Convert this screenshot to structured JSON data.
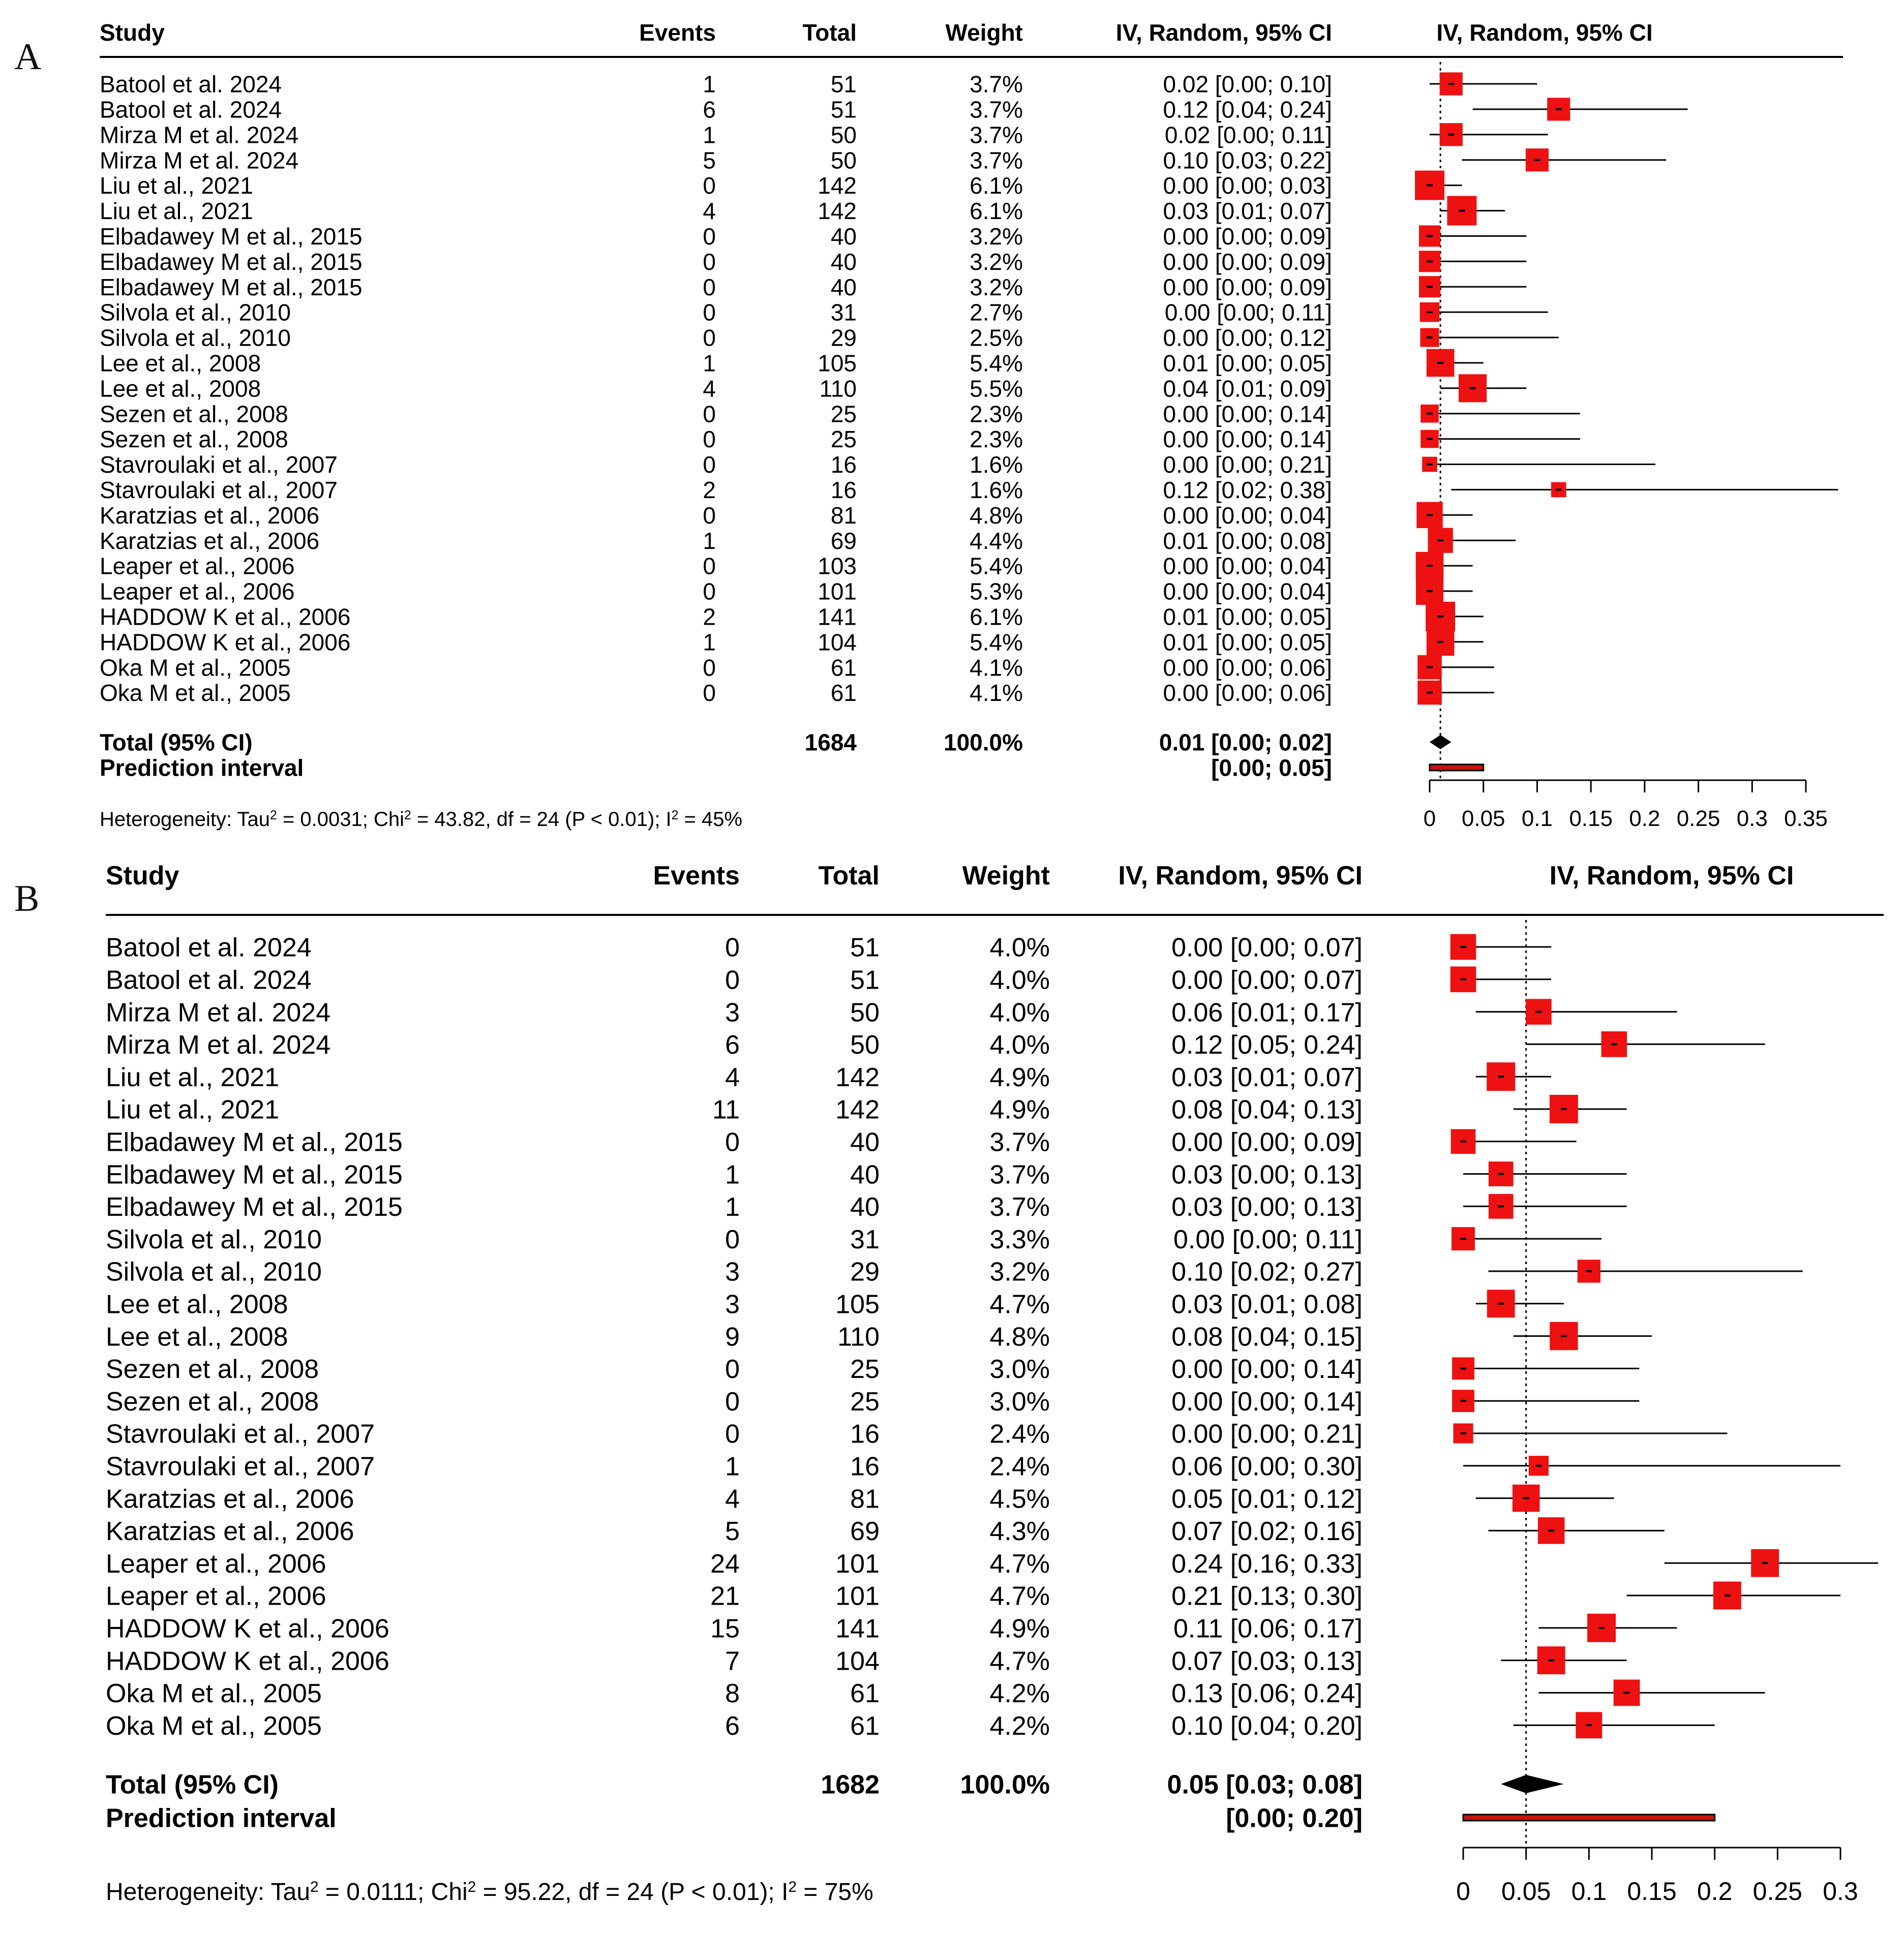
{
  "chart_data": [
    {
      "type": "forest",
      "panel_label": "A",
      "headers": {
        "study": "Study",
        "events": "Events",
        "total": "Total",
        "weight": "Weight",
        "ci": "IV, Random, 95% CI",
        "plot": "IV, Random, 95% CI"
      },
      "rows": [
        {
          "study": "Batool et al.  2024",
          "events": "1",
          "total": "51",
          "weight": "3.7%",
          "ci_text": "0.02 [0.00; 0.10]",
          "est": 0.02,
          "lo": 0.0,
          "hi": 0.1,
          "w": 3.7
        },
        {
          "study": "Batool et al.  2024",
          "events": "6",
          "total": "51",
          "weight": "3.7%",
          "ci_text": "0.12 [0.04; 0.24]",
          "est": 0.12,
          "lo": 0.04,
          "hi": 0.24,
          "w": 3.7
        },
        {
          "study": "Mirza M et al. 2024",
          "events": "1",
          "total": "50",
          "weight": "3.7%",
          "ci_text": "0.02 [0.00; 0.11]",
          "est": 0.02,
          "lo": 0.0,
          "hi": 0.11,
          "w": 3.7
        },
        {
          "study": "Mirza M et al. 2024",
          "events": "5",
          "total": "50",
          "weight": "3.7%",
          "ci_text": "0.10 [0.03; 0.22]",
          "est": 0.1,
          "lo": 0.03,
          "hi": 0.22,
          "w": 3.7
        },
        {
          "study": "Liu et al., 2021",
          "events": "0",
          "total": "142",
          "weight": "6.1%",
          "ci_text": "0.00 [0.00; 0.03]",
          "est": 0.0,
          "lo": 0.0,
          "hi": 0.03,
          "w": 6.1
        },
        {
          "study": "Liu et al., 2021",
          "events": "4",
          "total": "142",
          "weight": "6.1%",
          "ci_text": "0.03 [0.01; 0.07]",
          "est": 0.03,
          "lo": 0.01,
          "hi": 0.07,
          "w": 6.1
        },
        {
          "study": "Elbadawey M et al., 2015",
          "events": "0",
          "total": "40",
          "weight": "3.2%",
          "ci_text": "0.00 [0.00; 0.09]",
          "est": 0.0,
          "lo": 0.0,
          "hi": 0.09,
          "w": 3.2
        },
        {
          "study": "Elbadawey M et al., 2015",
          "events": "0",
          "total": "40",
          "weight": "3.2%",
          "ci_text": "0.00 [0.00; 0.09]",
          "est": 0.0,
          "lo": 0.0,
          "hi": 0.09,
          "w": 3.2
        },
        {
          "study": "Elbadawey M et al., 2015",
          "events": "0",
          "total": "40",
          "weight": "3.2%",
          "ci_text": "0.00 [0.00; 0.09]",
          "est": 0.0,
          "lo": 0.0,
          "hi": 0.09,
          "w": 3.2
        },
        {
          "study": "Silvola et al.,  2010",
          "events": "0",
          "total": "31",
          "weight": "2.7%",
          "ci_text": "0.00 [0.00; 0.11]",
          "est": 0.0,
          "lo": 0.0,
          "hi": 0.11,
          "w": 2.7
        },
        {
          "study": "Silvola et al., 2010",
          "events": "0",
          "total": "29",
          "weight": "2.5%",
          "ci_text": "0.00 [0.00; 0.12]",
          "est": 0.0,
          "lo": 0.0,
          "hi": 0.12,
          "w": 2.5
        },
        {
          "study": "Lee et al., 2008",
          "events": "1",
          "total": "105",
          "weight": "5.4%",
          "ci_text": "0.01 [0.00; 0.05]",
          "est": 0.01,
          "lo": 0.0,
          "hi": 0.05,
          "w": 5.4
        },
        {
          "study": "Lee et al., 2008",
          "events": "4",
          "total": "110",
          "weight": "5.5%",
          "ci_text": "0.04 [0.01; 0.09]",
          "est": 0.04,
          "lo": 0.01,
          "hi": 0.09,
          "w": 5.5
        },
        {
          "study": "Sezen et al.,  2008",
          "events": "0",
          "total": "25",
          "weight": "2.3%",
          "ci_text": "0.00 [0.00; 0.14]",
          "est": 0.0,
          "lo": 0.0,
          "hi": 0.14,
          "w": 2.3
        },
        {
          "study": "Sezen et al., 2008",
          "events": "0",
          "total": "25",
          "weight": "2.3%",
          "ci_text": "0.00 [0.00; 0.14]",
          "est": 0.0,
          "lo": 0.0,
          "hi": 0.14,
          "w": 2.3
        },
        {
          "study": "Stavroulaki et al., 2007",
          "events": "0",
          "total": "16",
          "weight": "1.6%",
          "ci_text": "0.00 [0.00; 0.21]",
          "est": 0.0,
          "lo": 0.0,
          "hi": 0.21,
          "w": 1.6
        },
        {
          "study": "Stavroulaki et al.,  2007",
          "events": "2",
          "total": "16",
          "weight": "1.6%",
          "ci_text": "0.12 [0.02; 0.38]",
          "est": 0.12,
          "lo": 0.02,
          "hi": 0.38,
          "w": 1.6
        },
        {
          "study": "Karatzias et al.,  2006",
          "events": "0",
          "total": "81",
          "weight": "4.8%",
          "ci_text": "0.00 [0.00; 0.04]",
          "est": 0.0,
          "lo": 0.0,
          "hi": 0.04,
          "w": 4.8
        },
        {
          "study": "Karatzias et al., 2006",
          "events": "1",
          "total": "69",
          "weight": "4.4%",
          "ci_text": "0.01 [0.00; 0.08]",
          "est": 0.01,
          "lo": 0.0,
          "hi": 0.08,
          "w": 4.4
        },
        {
          "study": "Leaper et al., 2006",
          "events": "0",
          "total": "103",
          "weight": "5.4%",
          "ci_text": "0.00 [0.00; 0.04]",
          "est": 0.0,
          "lo": 0.0,
          "hi": 0.04,
          "w": 5.4
        },
        {
          "study": "Leaper et al., 2006",
          "events": "0",
          "total": "101",
          "weight": "5.3%",
          "ci_text": "0.00 [0.00; 0.04]",
          "est": 0.0,
          "lo": 0.0,
          "hi": 0.04,
          "w": 5.3
        },
        {
          "study": "HADDOW K et al., 2006",
          "events": "2",
          "total": "141",
          "weight": "6.1%",
          "ci_text": "0.01 [0.00; 0.05]",
          "est": 0.01,
          "lo": 0.0,
          "hi": 0.05,
          "w": 6.1
        },
        {
          "study": "HADDOW K et al.,  2006",
          "events": "1",
          "total": "104",
          "weight": "5.4%",
          "ci_text": "0.01 [0.00; 0.05]",
          "est": 0.01,
          "lo": 0.0,
          "hi": 0.05,
          "w": 5.4
        },
        {
          "study": "Oka M et al.,  2005",
          "events": "0",
          "total": "61",
          "weight": "4.1%",
          "ci_text": "0.00 [0.00; 0.06]",
          "est": 0.0,
          "lo": 0.0,
          "hi": 0.06,
          "w": 4.1
        },
        {
          "study": "Oka M et al., 2005",
          "events": "0",
          "total": "61",
          "weight": "4.1%",
          "ci_text": "0.00 [0.00; 0.06]",
          "est": 0.0,
          "lo": 0.0,
          "hi": 0.06,
          "w": 4.1
        }
      ],
      "total": {
        "label": "Total (95% CI)",
        "total": "1684",
        "weight": "100.0%",
        "ci_text": "0.01 [0.00; 0.02]",
        "est": 0.01,
        "lo": 0.0,
        "hi": 0.02
      },
      "prediction": {
        "label": "Prediction interval",
        "ci_text": "[0.00; 0.05]",
        "lo": 0.0,
        "hi": 0.05
      },
      "heterogeneity": {
        "a": "Heterogeneity: Tau",
        "b": " = 0.0031; Chi",
        "c": " = 43.82, df = 24 (P < 0.01); I",
        "d": " = 45%",
        "sup": "2"
      },
      "xlim": [
        0,
        0.35
      ],
      "ref_line": 0.01,
      "ticks": [
        0,
        0.05,
        0.1,
        0.15,
        0.2,
        0.25,
        0.3,
        0.35
      ],
      "tick_labels": [
        "0",
        "0.05",
        "0.1",
        "0.15",
        "0.2",
        "0.25",
        "0.3",
        "0.35"
      ]
    },
    {
      "type": "forest",
      "panel_label": "B",
      "headers": {
        "study": "Study",
        "events": "Events",
        "total": "Total",
        "weight": "Weight",
        "ci": "IV, Random, 95% CI",
        "plot": "IV, Random, 95% CI"
      },
      "rows": [
        {
          "study": "Batool et al.  2024",
          "events": "0",
          "total": "51",
          "weight": "4.0%",
          "ci_text": "0.00 [0.00; 0.07]",
          "est": 0.0,
          "lo": 0.0,
          "hi": 0.07,
          "w": 4.0
        },
        {
          "study": "Batool et al.  2024",
          "events": "0",
          "total": "51",
          "weight": "4.0%",
          "ci_text": "0.00 [0.00; 0.07]",
          "est": 0.0,
          "lo": 0.0,
          "hi": 0.07,
          "w": 4.0
        },
        {
          "study": "Mirza M et al. 2024",
          "events": "3",
          "total": "50",
          "weight": "4.0%",
          "ci_text": "0.06 [0.01; 0.17]",
          "est": 0.06,
          "lo": 0.01,
          "hi": 0.17,
          "w": 4.0
        },
        {
          "study": "Mirza M et al. 2024",
          "events": "6",
          "total": "50",
          "weight": "4.0%",
          "ci_text": "0.12 [0.05; 0.24]",
          "est": 0.12,
          "lo": 0.05,
          "hi": 0.24,
          "w": 4.0
        },
        {
          "study": "Liu et al., 2021",
          "events": "4",
          "total": "142",
          "weight": "4.9%",
          "ci_text": "0.03 [0.01; 0.07]",
          "est": 0.03,
          "lo": 0.01,
          "hi": 0.07,
          "w": 4.9
        },
        {
          "study": "Liu et al., 2021",
          "events": "11",
          "total": "142",
          "weight": "4.9%",
          "ci_text": "0.08 [0.04; 0.13]",
          "est": 0.08,
          "lo": 0.04,
          "hi": 0.13,
          "w": 4.9
        },
        {
          "study": "Elbadawey M et al., 2015",
          "events": "0",
          "total": "40",
          "weight": "3.7%",
          "ci_text": "0.00 [0.00; 0.09]",
          "est": 0.0,
          "lo": 0.0,
          "hi": 0.09,
          "w": 3.7
        },
        {
          "study": "Elbadawey M et al., 2015",
          "events": "1",
          "total": "40",
          "weight": "3.7%",
          "ci_text": "0.03 [0.00; 0.13]",
          "est": 0.03,
          "lo": 0.0,
          "hi": 0.13,
          "w": 3.7
        },
        {
          "study": "Elbadawey M et al., 2015",
          "events": "1",
          "total": "40",
          "weight": "3.7%",
          "ci_text": "0.03 [0.00; 0.13]",
          "est": 0.03,
          "lo": 0.0,
          "hi": 0.13,
          "w": 3.7
        },
        {
          "study": "Silvola et al.,  2010",
          "events": "0",
          "total": "31",
          "weight": "3.3%",
          "ci_text": "0.00 [0.00; 0.11]",
          "est": 0.0,
          "lo": 0.0,
          "hi": 0.11,
          "w": 3.3
        },
        {
          "study": "Silvola et al., 2010",
          "events": "3",
          "total": "29",
          "weight": "3.2%",
          "ci_text": "0.10 [0.02; 0.27]",
          "est": 0.1,
          "lo": 0.02,
          "hi": 0.27,
          "w": 3.2
        },
        {
          "study": "Lee et al., 2008",
          "events": "3",
          "total": "105",
          "weight": "4.7%",
          "ci_text": "0.03 [0.01; 0.08]",
          "est": 0.03,
          "lo": 0.01,
          "hi": 0.08,
          "w": 4.7
        },
        {
          "study": "Lee et al., 2008",
          "events": "9",
          "total": "110",
          "weight": "4.8%",
          "ci_text": "0.08 [0.04; 0.15]",
          "est": 0.08,
          "lo": 0.04,
          "hi": 0.15,
          "w": 4.8
        },
        {
          "study": "Sezen et al.,  2008",
          "events": "0",
          "total": "25",
          "weight": "3.0%",
          "ci_text": "0.00 [0.00; 0.14]",
          "est": 0.0,
          "lo": 0.0,
          "hi": 0.14,
          "w": 3.0
        },
        {
          "study": "Sezen et al., 2008",
          "events": "0",
          "total": "25",
          "weight": "3.0%",
          "ci_text": "0.00 [0.00; 0.14]",
          "est": 0.0,
          "lo": 0.0,
          "hi": 0.14,
          "w": 3.0
        },
        {
          "study": "Stavroulaki et al., 2007",
          "events": "0",
          "total": "16",
          "weight": "2.4%",
          "ci_text": "0.00 [0.00; 0.21]",
          "est": 0.0,
          "lo": 0.0,
          "hi": 0.21,
          "w": 2.4
        },
        {
          "study": "Stavroulaki et al.,  2007",
          "events": "1",
          "total": "16",
          "weight": "2.4%",
          "ci_text": "0.06 [0.00; 0.30]",
          "est": 0.06,
          "lo": 0.0,
          "hi": 0.3,
          "w": 2.4
        },
        {
          "study": "Karatzias et al.,  2006",
          "events": "4",
          "total": "81",
          "weight": "4.5%",
          "ci_text": "0.05 [0.01; 0.12]",
          "est": 0.05,
          "lo": 0.01,
          "hi": 0.12,
          "w": 4.5
        },
        {
          "study": "Karatzias et al., 2006",
          "events": "5",
          "total": "69",
          "weight": "4.3%",
          "ci_text": "0.07 [0.02; 0.16]",
          "est": 0.07,
          "lo": 0.02,
          "hi": 0.16,
          "w": 4.3
        },
        {
          "study": "Leaper et al., 2006",
          "events": "24",
          "total": "101",
          "weight": "4.7%",
          "ci_text": "0.24 [0.16; 0.33]",
          "est": 0.24,
          "lo": 0.16,
          "hi": 0.33,
          "w": 4.7
        },
        {
          "study": "Leaper et al., 2006",
          "events": "21",
          "total": "101",
          "weight": "4.7%",
          "ci_text": "0.21 [0.13; 0.30]",
          "est": 0.21,
          "lo": 0.13,
          "hi": 0.3,
          "w": 4.7
        },
        {
          "study": "HADDOW K et al., 2006",
          "events": "15",
          "total": "141",
          "weight": "4.9%",
          "ci_text": "0.11 [0.06; 0.17]",
          "est": 0.11,
          "lo": 0.06,
          "hi": 0.17,
          "w": 4.9
        },
        {
          "study": "HADDOW K et al.,  2006",
          "events": "7",
          "total": "104",
          "weight": "4.7%",
          "ci_text": "0.07 [0.03; 0.13]",
          "est": 0.07,
          "lo": 0.03,
          "hi": 0.13,
          "w": 4.7
        },
        {
          "study": "Oka M et al.,  2005",
          "events": "8",
          "total": "61",
          "weight": "4.2%",
          "ci_text": "0.13 [0.06; 0.24]",
          "est": 0.13,
          "lo": 0.06,
          "hi": 0.24,
          "w": 4.2
        },
        {
          "study": "Oka M et al., 2005",
          "events": "6",
          "total": "61",
          "weight": "4.2%",
          "ci_text": "0.10 [0.04; 0.20]",
          "est": 0.1,
          "lo": 0.04,
          "hi": 0.2,
          "w": 4.2
        }
      ],
      "total": {
        "label": "Total (95% CI)",
        "total": "1682",
        "weight": "100.0%",
        "ci_text": "0.05 [0.03; 0.08]",
        "est": 0.05,
        "lo": 0.03,
        "hi": 0.08
      },
      "prediction": {
        "label": "Prediction interval",
        "ci_text": "[0.00; 0.20]",
        "lo": 0.0,
        "hi": 0.2
      },
      "heterogeneity": {
        "a": "Heterogeneity: Tau",
        "b": " = 0.0111; Chi",
        "c": " = 95.22, df = 24 (P < 0.01); I",
        "d": " = 75%",
        "sup": "2"
      },
      "xlim": [
        0,
        0.3
      ],
      "ref_line": 0.05,
      "ticks": [
        0,
        0.05,
        0.1,
        0.15,
        0.2,
        0.25,
        0.3
      ],
      "tick_labels": [
        "0",
        "0.05",
        "0.1",
        "0.15",
        "0.2",
        "0.25",
        "0.3"
      ]
    }
  ],
  "colors": {
    "box": "#ee1111",
    "line": "#000000",
    "pi_fill": "#cc1111"
  }
}
